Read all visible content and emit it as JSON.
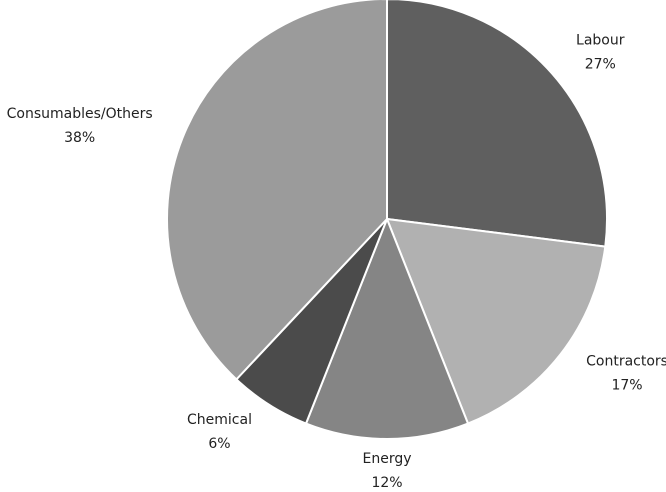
{
  "chart_data": {
    "type": "pie",
    "categories": [
      "Labour",
      "Contractors",
      "Energy",
      "Chemical",
      "Consumables/Others"
    ],
    "values": [
      27,
      17,
      12,
      6,
      38
    ],
    "value_labels": [
      "27%",
      "17%",
      "12%",
      "6%",
      "38%"
    ],
    "colors": [
      "#5f5f5f",
      "#b1b1b1",
      "#858585",
      "#4b4b4b",
      "#9b9b9b"
    ]
  }
}
